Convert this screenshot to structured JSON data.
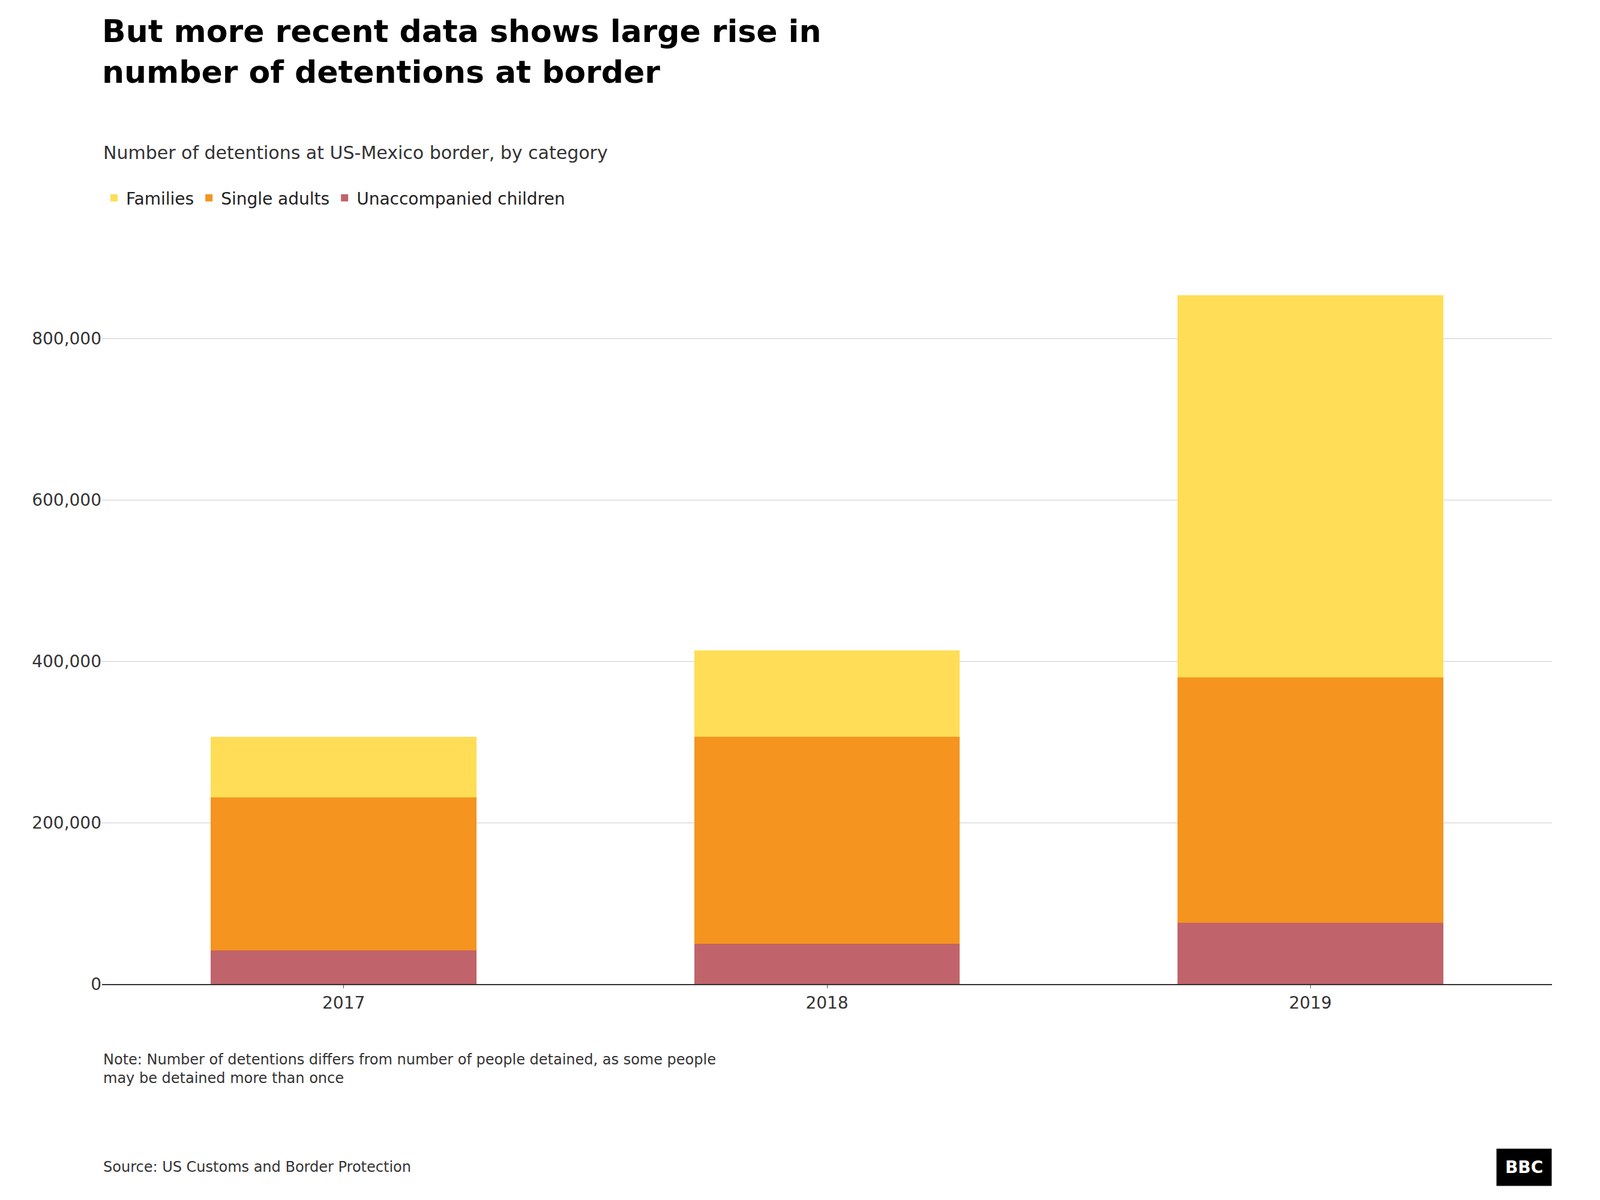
{
  "chart_data": {
    "type": "bar",
    "stacked": true,
    "title": "But more recent data shows large rise in\nnumber of detentions at border",
    "subtitle": "Number of detentions at US-Mexico border, by category",
    "categories": [
      "2017",
      "2018",
      "2019"
    ],
    "series": [
      {
        "name": "Unaccompanied children",
        "color": "#C1636A",
        "values": [
          41435,
          50036,
          76020
        ]
      },
      {
        "name": "Single adults",
        "color": "#F5941E",
        "values": [
          189572,
          256085,
          304050
        ]
      },
      {
        "name": "Families",
        "color": "#FFDD57",
        "values": [
          75622,
          107212,
          473682
        ]
      }
    ],
    "ylim": [
      0,
      900000
    ],
    "yticks": [
      0,
      {
        "value": 200000,
        "label": "200,000"
      },
      {
        "value": 400000,
        "label": "400,000"
      },
      {
        "value": 600000,
        "label": "600,000"
      },
      {
        "value": 800000,
        "label": "800,000"
      }
    ],
    "grid": true,
    "legend": "top left",
    "note": "Note: Number of detentions differs from number of people detained, as some people\nmay be detained more than once",
    "source": "Source: US Customs and Border Protection",
    "annotations": [
      "BBC"
    ]
  }
}
